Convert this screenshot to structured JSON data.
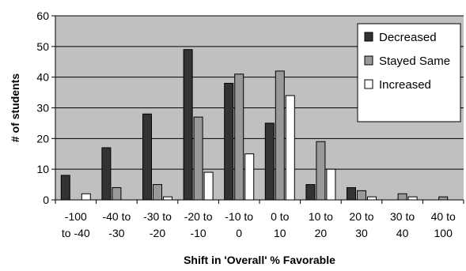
{
  "chart_data": {
    "type": "bar",
    "title": "",
    "xlabel": "Shift in 'Overall' % Favorable",
    "ylabel": "# of students",
    "ylim": [
      0,
      60
    ],
    "yticks": [
      0,
      10,
      20,
      30,
      40,
      50,
      60
    ],
    "grid": true,
    "legend_position": "top-right",
    "categories": [
      [
        "-100",
        "to -40"
      ],
      [
        "-40 to",
        "-30"
      ],
      [
        "-30 to",
        "-20"
      ],
      [
        "-20 to",
        "-10"
      ],
      [
        "-10 to",
        "0"
      ],
      [
        "0 to",
        "10"
      ],
      [
        "10 to",
        "20"
      ],
      [
        "20 to",
        "30"
      ],
      [
        "30 to",
        "40"
      ],
      [
        "40 to",
        "100"
      ]
    ],
    "series": [
      {
        "name": "Decreased",
        "color": "#333333",
        "values": [
          8,
          17,
          28,
          49,
          38,
          25,
          5,
          4,
          0,
          0
        ]
      },
      {
        "name": "Stayed Same",
        "color": "#999999",
        "values": [
          0,
          4,
          5,
          27,
          41,
          42,
          19,
          3,
          2,
          1
        ]
      },
      {
        "name": "Increased",
        "color": "#ffffff",
        "values": [
          2,
          0,
          1,
          9,
          15,
          34,
          10,
          1,
          1,
          0
        ]
      }
    ],
    "plot_background": "#c0c0c0"
  }
}
